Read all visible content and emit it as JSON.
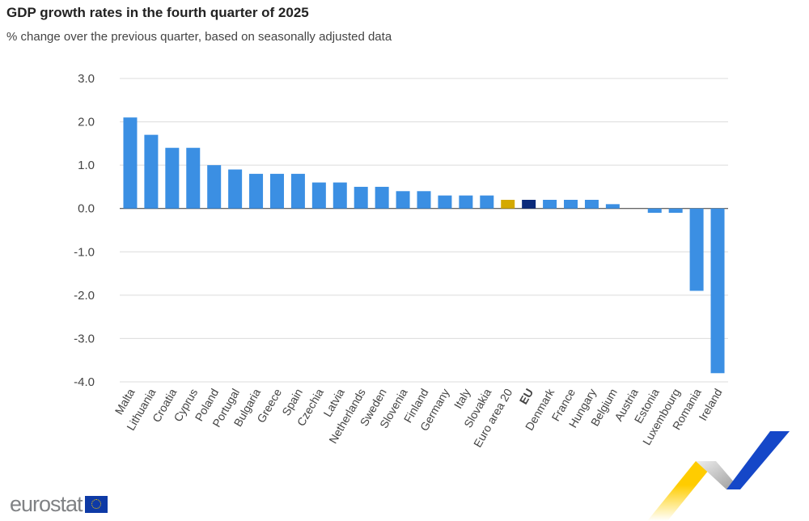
{
  "chart_data": {
    "type": "bar",
    "title": "GDP growth rates in the fourth quarter of 2025",
    "subtitle": "% change over the previous quarter, based on seasonally adjusted data",
    "categories": [
      "Malta",
      "Lithuania",
      "Croatia",
      "Cyprus",
      "Poland",
      "Portugal",
      "Bulgaria",
      "Greece",
      "Spain",
      "Czechia",
      "Latvia",
      "Netherlands",
      "Sweden",
      "Slovenia",
      "Finland",
      "Germany",
      "Italy",
      "Slovakia",
      "Euro area 20",
      "EU",
      "Denmark",
      "France",
      "Hungary",
      "Belgium",
      "Austria",
      "Estonia",
      "Luxembourg",
      "Romania",
      "Ireland"
    ],
    "values": [
      2.1,
      1.7,
      1.4,
      1.4,
      1.0,
      0.9,
      0.8,
      0.8,
      0.8,
      0.6,
      0.6,
      0.5,
      0.5,
      0.4,
      0.4,
      0.3,
      0.3,
      0.3,
      0.2,
      0.2,
      0.2,
      0.2,
      0.2,
      0.1,
      0.0,
      -0.1,
      -0.1,
      -1.9,
      -3.8
    ],
    "ylim": [
      -4.0,
      3.0
    ],
    "yticks": [
      "3.0",
      "2.0",
      "1.0",
      "0.0",
      "-1.0",
      "-2.0",
      "-3.0",
      "-4.0"
    ],
    "grid": true,
    "colors": {
      "default": "#3b8fe3",
      "Euro area 20": "#d4a900",
      "EU": "#0b2a7a"
    },
    "bold_categories": [
      "EU"
    ]
  },
  "logo": {
    "text": "eurostat"
  }
}
